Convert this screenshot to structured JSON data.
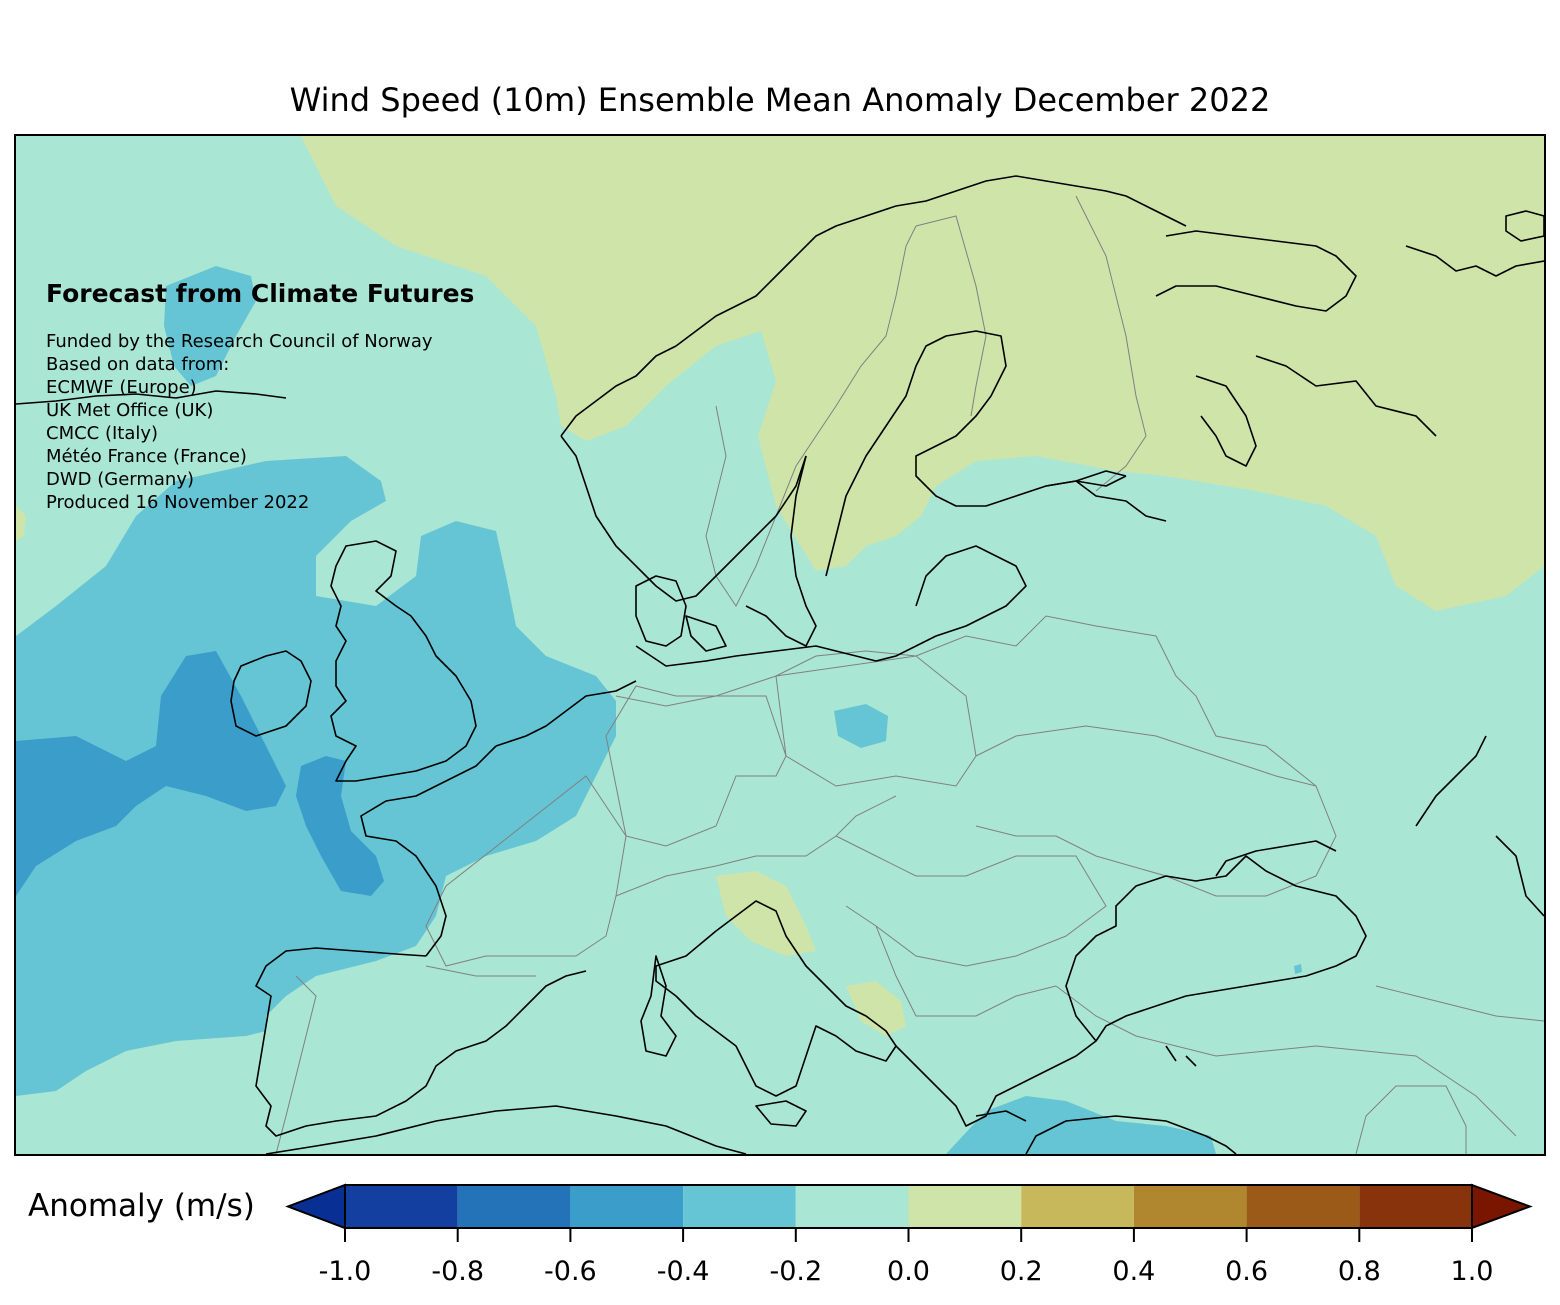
{
  "title": "Wind Speed (10m) Ensemble Mean Anomaly December 2022",
  "heading": "Forecast from Climate Futures",
  "credits": [
    "Funded by the Research Council of Norway",
    "Based on data from:",
    "ECMWF (Europe)",
    "UK Met Office (UK)",
    "CMCC (Italy)",
    "Météo France (France)",
    "DWD (Germany)",
    "Produced 16 November 2022"
  ],
  "colorbar": {
    "label": "Anomaly (m/s)",
    "min": -1.0,
    "max": 1.0,
    "extend": "both",
    "levels": [
      -1.0,
      -0.8,
      -0.6,
      -0.4,
      -0.2,
      0.0,
      0.2,
      0.4,
      0.6,
      0.8,
      1.0
    ],
    "tick_labels": [
      "-1.0",
      "-0.8",
      "-0.6",
      "-0.4",
      "-0.2",
      "0.0",
      "0.2",
      "0.4",
      "0.6",
      "0.8",
      "1.0"
    ],
    "colors": [
      "#123fa0",
      "#2473b8",
      "#3a9dca",
      "#66c5d5",
      "#aae6d4",
      "#cfe4a9",
      "#c7b85c",
      "#b0872e",
      "#9c5a18",
      "#88330c"
    ],
    "under_color": "#082f94",
    "over_color": "#7a1500"
  },
  "field_colors": {
    "background": "#aae6d4",
    "positive_small": "#cfe4a9",
    "negative_small": "#66c5d5",
    "negative_medium": "#3a9dca"
  }
}
